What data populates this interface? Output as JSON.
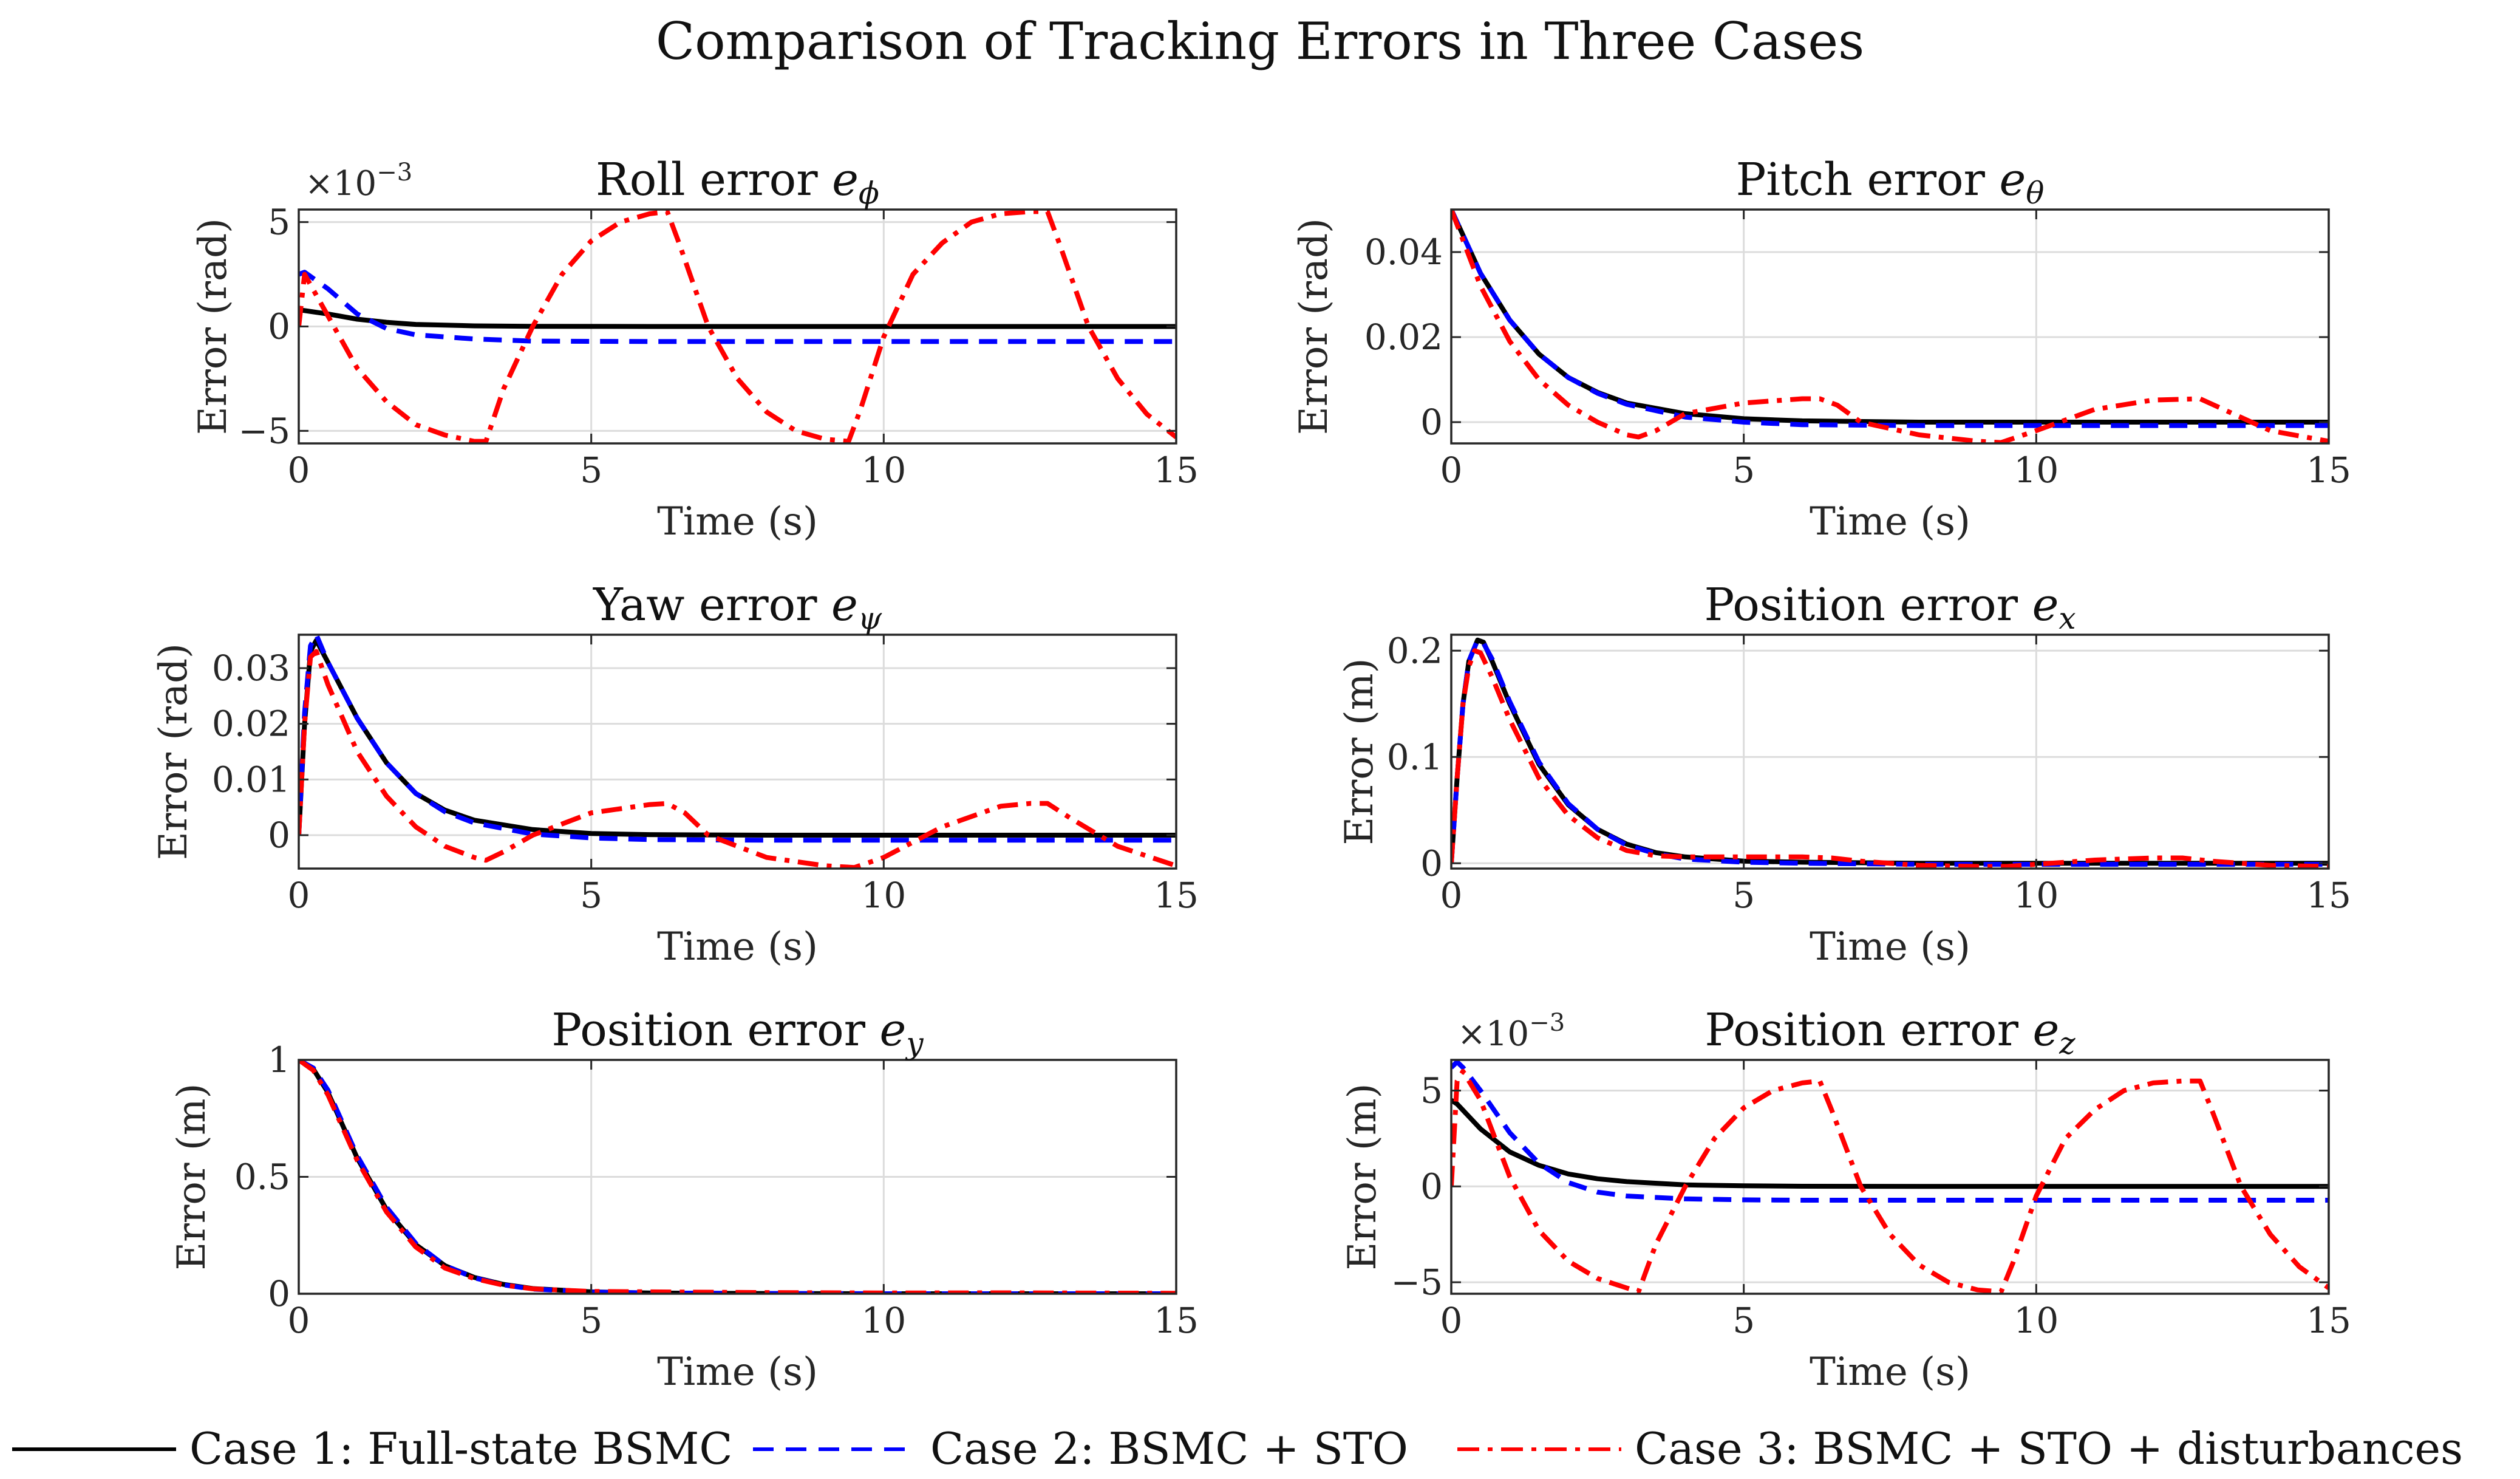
{
  "figure_title": "Comparison of Tracking Errors in Three Cases",
  "legend": [
    {
      "label": "Case 1: Full-state BSMC",
      "color": "#000000",
      "style": "solid"
    },
    {
      "label": "Case 2: BSMC + STO",
      "color": "#0000ff",
      "style": "dashed"
    },
    {
      "label": "Case 3: BSMC + STO + disturbances",
      "color": "#ff0000",
      "style": "dashdot"
    }
  ],
  "chart_data": [
    {
      "type": "line",
      "title_main": "Roll error ",
      "title_sym": "e",
      "title_sub": "ϕ",
      "xlabel": "Time (s)",
      "ylabel": "Error (rad)",
      "xlim": [
        0,
        15
      ],
      "ylim": [
        -5.6,
        5.6
      ],
      "exponent": "×10",
      "exponent_power": "−3",
      "xticks": [
        0,
        5,
        10,
        15
      ],
      "xtick_labels": [
        "0",
        "5",
        "10",
        "15"
      ],
      "yticks": [
        -5,
        0,
        5
      ],
      "ytick_labels": [
        "−5",
        "0",
        "5"
      ],
      "series": [
        {
          "name": "Case 1",
          "x": [
            0,
            0.5,
            1,
            1.5,
            2,
            3,
            4,
            6,
            8,
            10,
            12,
            15
          ],
          "y": [
            0.8,
            0.6,
            0.35,
            0.2,
            0.1,
            0.03,
            0.01,
            0,
            0,
            0,
            0,
            0
          ]
        },
        {
          "name": "Case 2",
          "x": [
            0,
            0.1,
            0.5,
            1,
            1.5,
            2,
            3,
            4,
            6,
            8,
            10,
            12,
            15
          ],
          "y": [
            2.5,
            2.6,
            1.8,
            0.6,
            -0.1,
            -0.4,
            -0.6,
            -0.7,
            -0.72,
            -0.72,
            -0.72,
            -0.72,
            -0.72
          ]
        },
        {
          "name": "Case 3",
          "x": [
            0,
            0.1,
            0.5,
            1,
            1.5,
            2,
            2.5,
            3,
            3.2,
            3.5,
            4,
            4.5,
            5,
            5.5,
            6,
            6.3,
            6.5,
            7,
            7.5,
            8,
            8.5,
            9,
            9.4,
            9.6,
            10,
            10.5,
            11,
            11.5,
            12,
            12.5,
            12.8,
            13,
            13.5,
            14,
            14.5,
            15
          ],
          "y": [
            0,
            2.5,
            0.5,
            -2,
            -3.6,
            -4.7,
            -5.2,
            -5.5,
            -5.5,
            -3,
            0,
            2.5,
            4.1,
            5,
            5.4,
            5.5,
            4,
            0,
            -2.5,
            -4.1,
            -5,
            -5.4,
            -5.5,
            -4,
            -0.5,
            2.5,
            4,
            5,
            5.4,
            5.5,
            5.5,
            4,
            0,
            -2.5,
            -4.2,
            -5.3
          ]
        }
      ]
    },
    {
      "type": "line",
      "title_main": "Pitch error ",
      "title_sym": "e",
      "title_sub": "θ",
      "xlabel": "Time (s)",
      "ylabel": "Error (rad)",
      "xlim": [
        0,
        15
      ],
      "ylim": [
        -0.005,
        0.05
      ],
      "exponent": "",
      "exponent_power": "",
      "xticks": [
        0,
        5,
        10,
        15
      ],
      "xtick_labels": [
        "0",
        "5",
        "10",
        "15"
      ],
      "yticks": [
        0,
        0.02,
        0.04
      ],
      "ytick_labels": [
        "0",
        "0.02",
        "0.04"
      ],
      "series": [
        {
          "name": "Case 1",
          "x": [
            0,
            0.5,
            1,
            1.5,
            2,
            2.5,
            3,
            4,
            5,
            6,
            8,
            10,
            12,
            15
          ],
          "y": [
            0.05,
            0.035,
            0.024,
            0.016,
            0.0105,
            0.007,
            0.0045,
            0.002,
            0.0008,
            0.0003,
            0,
            0,
            0,
            0
          ]
        },
        {
          "name": "Case 2",
          "x": [
            0,
            0.5,
            1,
            1.5,
            2,
            2.5,
            3,
            4,
            5,
            6,
            8,
            10,
            12,
            15
          ],
          "y": [
            0.05,
            0.035,
            0.024,
            0.016,
            0.0105,
            0.0068,
            0.0042,
            0.0012,
            0,
            -0.0006,
            -0.0008,
            -0.0008,
            -0.0008,
            -0.0008
          ]
        },
        {
          "name": "Case 3",
          "x": [
            0,
            0.5,
            1,
            1.5,
            2,
            2.5,
            3,
            3.2,
            3.5,
            4,
            5,
            6,
            6.3,
            6.6,
            7,
            8,
            9,
            9.4,
            10,
            11,
            12,
            12.8,
            13.2,
            14,
            15
          ],
          "y": [
            0.05,
            0.032,
            0.019,
            0.01,
            0.004,
            0.0,
            -0.003,
            -0.0035,
            -0.002,
            0.002,
            0.0045,
            0.0055,
            0.0055,
            0.004,
            0.0,
            -0.003,
            -0.0045,
            -0.0048,
            -0.002,
            0.003,
            0.0052,
            0.0055,
            0.003,
            -0.002,
            -0.0045
          ]
        }
      ]
    },
    {
      "type": "line",
      "title_main": "Yaw error ",
      "title_sym": "e",
      "title_sub": "ψ",
      "xlabel": "Time (s)",
      "ylabel": "Error (rad)",
      "xlim": [
        0,
        15
      ],
      "ylim": [
        -0.006,
        0.036
      ],
      "exponent": "",
      "exponent_power": "",
      "xticks": [
        0,
        5,
        10,
        15
      ],
      "xtick_labels": [
        "0",
        "5",
        "10",
        "15"
      ],
      "yticks": [
        0,
        0.01,
        0.02,
        0.03
      ],
      "ytick_labels": [
        "0",
        "0.01",
        "0.02",
        "0.03"
      ],
      "series": [
        {
          "name": "Case 1",
          "x": [
            0,
            0.1,
            0.2,
            0.3,
            0.5,
            1,
            1.5,
            2,
            2.5,
            3,
            4,
            5,
            6,
            8,
            10,
            12,
            15
          ],
          "y": [
            0,
            0.02,
            0.033,
            0.035,
            0.031,
            0.021,
            0.013,
            0.0075,
            0.0045,
            0.0027,
            0.001,
            0.0003,
            0.0001,
            0,
            0,
            0,
            0
          ]
        },
        {
          "name": "Case 2",
          "x": [
            0,
            0.1,
            0.2,
            0.3,
            0.5,
            1,
            1.5,
            2,
            2.5,
            3,
            4,
            5,
            6,
            8,
            10,
            12,
            15
          ],
          "y": [
            0,
            0.022,
            0.034,
            0.036,
            0.031,
            0.021,
            0.013,
            0.0075,
            0.0042,
            0.0022,
            0.0002,
            -0.0005,
            -0.0008,
            -0.0009,
            -0.0009,
            -0.0009,
            -0.0009
          ]
        },
        {
          "name": "Case 3",
          "x": [
            0,
            0.1,
            0.2,
            0.3,
            0.5,
            1,
            1.5,
            2,
            2.5,
            3,
            3.2,
            3.5,
            4,
            5,
            6,
            6.3,
            6.6,
            7,
            8,
            9,
            9.5,
            10,
            11,
            12,
            12.5,
            12.8,
            13.2,
            14,
            15
          ],
          "y": [
            0,
            0.02,
            0.032,
            0.033,
            0.027,
            0.015,
            0.007,
            0.0015,
            -0.002,
            -0.004,
            -0.0045,
            -0.003,
            0.0,
            0.004,
            0.0055,
            0.0057,
            0.004,
            0.0,
            -0.004,
            -0.0055,
            -0.0058,
            -0.004,
            0.0015,
            0.0052,
            0.0057,
            0.0057,
            0.003,
            -0.002,
            -0.0055
          ]
        }
      ]
    },
    {
      "type": "line",
      "title_main": "Position error ",
      "title_sym": "e",
      "title_sub": "x",
      "xlabel": "Time (s)",
      "ylabel": "Error (m)",
      "xlim": [
        0,
        15
      ],
      "ylim": [
        -0.005,
        0.215
      ],
      "exponent": "",
      "exponent_power": "",
      "xticks": [
        0,
        5,
        10,
        15
      ],
      "xtick_labels": [
        "0",
        "5",
        "10",
        "15"
      ],
      "yticks": [
        0,
        0.1,
        0.2
      ],
      "ytick_labels": [
        "0",
        "0.1",
        "0.2"
      ],
      "series": [
        {
          "name": "Case 1",
          "x": [
            0,
            0.1,
            0.2,
            0.3,
            0.45,
            0.55,
            0.7,
            1,
            1.5,
            2,
            2.5,
            3,
            3.5,
            4,
            5,
            6,
            8,
            10,
            12,
            15
          ],
          "y": [
            0,
            0.08,
            0.15,
            0.19,
            0.21,
            0.208,
            0.19,
            0.15,
            0.093,
            0.055,
            0.032,
            0.018,
            0.01,
            0.006,
            0.002,
            0.001,
            0,
            0,
            0,
            0
          ]
        },
        {
          "name": "Case 2",
          "x": [
            0,
            0.1,
            0.2,
            0.3,
            0.45,
            0.55,
            0.7,
            1,
            1.5,
            2,
            2.5,
            3,
            3.5,
            4,
            5,
            6,
            8,
            10,
            12,
            15
          ],
          "y": [
            0,
            0.08,
            0.15,
            0.19,
            0.21,
            0.207,
            0.192,
            0.152,
            0.095,
            0.056,
            0.032,
            0.017,
            0.009,
            0.004,
            0.001,
            0,
            -0.001,
            -0.001,
            -0.001,
            -0.001
          ]
        },
        {
          "name": "Case 3",
          "x": [
            0,
            0.1,
            0.2,
            0.3,
            0.4,
            0.5,
            0.7,
            1,
            1.5,
            2,
            2.5,
            3,
            3.5,
            4,
            5,
            6,
            6.5,
            7,
            8,
            9,
            9.5,
            10,
            11,
            12,
            12.5,
            13,
            14,
            15
          ],
          "y": [
            0,
            0.08,
            0.15,
            0.185,
            0.2,
            0.198,
            0.175,
            0.135,
            0.08,
            0.045,
            0.024,
            0.012,
            0.007,
            0.006,
            0.006,
            0.006,
            0.005,
            0.002,
            -0.002,
            -0.003,
            -0.003,
            -0.001,
            0.003,
            0.005,
            0.005,
            0.002,
            -0.002,
            -0.003
          ]
        }
      ]
    },
    {
      "type": "line",
      "title_main": "Position error ",
      "title_sym": "e",
      "title_sub": "y",
      "xlabel": "Time (s)",
      "ylabel": "Error (m)",
      "xlim": [
        0,
        15
      ],
      "ylim": [
        0,
        1
      ],
      "exponent": "",
      "exponent_power": "",
      "xticks": [
        0,
        5,
        10,
        15
      ],
      "xtick_labels": [
        "0",
        "5",
        "10",
        "15"
      ],
      "yticks": [
        0,
        0.5,
        1
      ],
      "ytick_labels": [
        "0",
        "0.5",
        "1"
      ],
      "series": [
        {
          "name": "Case 1",
          "x": [
            0,
            0.25,
            0.5,
            0.75,
            1,
            1.5,
            2,
            2.5,
            3,
            3.5,
            4,
            5,
            6,
            8,
            10,
            12,
            15
          ],
          "y": [
            1,
            0.96,
            0.86,
            0.72,
            0.58,
            0.36,
            0.21,
            0.12,
            0.07,
            0.04,
            0.022,
            0.008,
            0.003,
            0.001,
            0,
            0,
            0
          ]
        },
        {
          "name": "Case 2",
          "x": [
            0,
            0.25,
            0.5,
            0.75,
            1,
            1.5,
            2,
            2.5,
            3,
            3.5,
            4,
            5,
            6,
            8,
            10,
            12,
            15
          ],
          "y": [
            1,
            0.965,
            0.87,
            0.73,
            0.59,
            0.37,
            0.215,
            0.12,
            0.068,
            0.038,
            0.02,
            0.007,
            0.003,
            0.001,
            0,
            0,
            0
          ]
        },
        {
          "name": "Case 3",
          "x": [
            0,
            0.25,
            0.5,
            0.75,
            1,
            1.5,
            2,
            2.5,
            3,
            3.5,
            4,
            5,
            6,
            8,
            10,
            12,
            15
          ],
          "y": [
            1,
            0.955,
            0.85,
            0.71,
            0.57,
            0.35,
            0.2,
            0.11,
            0.065,
            0.037,
            0.021,
            0.01,
            0.008,
            0.005,
            0.003,
            0.004,
            0.002
          ]
        }
      ]
    },
    {
      "type": "line",
      "title_main": "Position error ",
      "title_sym": "e",
      "title_sub": "z",
      "xlabel": "Time (s)",
      "ylabel": "Error (m)",
      "xlim": [
        0,
        15
      ],
      "ylim": [
        -5.6,
        6.6
      ],
      "exponent": "×10",
      "exponent_power": "−3",
      "xticks": [
        0,
        5,
        10,
        15
      ],
      "xtick_labels": [
        "0",
        "5",
        "10",
        "15"
      ],
      "yticks": [
        -5,
        0,
        5
      ],
      "ytick_labels": [
        "−5",
        "0",
        "5"
      ],
      "series": [
        {
          "name": "Case 1",
          "x": [
            0,
            0.1,
            0.5,
            1,
            1.5,
            2,
            2.5,
            3,
            4,
            5,
            6,
            8,
            10,
            12,
            15
          ],
          "y": [
            4.5,
            4.3,
            3.0,
            1.8,
            1.1,
            0.65,
            0.4,
            0.25,
            0.08,
            0.03,
            0.01,
            0,
            0,
            0,
            0
          ]
        },
        {
          "name": "Case 2",
          "x": [
            0,
            0.1,
            0.2,
            0.5,
            1,
            1.5,
            2,
            2.5,
            3,
            4,
            5,
            6,
            8,
            10,
            12,
            15
          ],
          "y": [
            6.2,
            6.5,
            6.2,
            5.0,
            2.8,
            1.2,
            0.2,
            -0.3,
            -0.5,
            -0.65,
            -0.7,
            -0.72,
            -0.72,
            -0.72,
            -0.72,
            -0.72
          ]
        },
        {
          "name": "Case 3",
          "x": [
            0,
            0.1,
            0.2,
            0.5,
            1,
            1.5,
            2,
            2.5,
            3,
            3.2,
            3.5,
            4,
            4.5,
            5,
            5.5,
            6,
            6.3,
            6.5,
            7,
            7.5,
            8,
            8.5,
            9,
            9.4,
            9.6,
            10,
            10.5,
            11,
            11.5,
            12,
            12.5,
            12.8,
            13,
            13.5,
            14,
            14.5,
            15
          ],
          "y": [
            0,
            5.5,
            6.0,
            4.5,
            0.5,
            -2.3,
            -3.9,
            -4.8,
            -5.3,
            -5.5,
            -3,
            0,
            2.5,
            4.1,
            5,
            5.4,
            5.5,
            4,
            0,
            -2.5,
            -4.1,
            -5,
            -5.4,
            -5.5,
            -4,
            -0.5,
            2.5,
            4,
            5,
            5.4,
            5.5,
            5.5,
            4,
            0,
            -2.5,
            -4.2,
            -5.3
          ]
        }
      ]
    }
  ]
}
